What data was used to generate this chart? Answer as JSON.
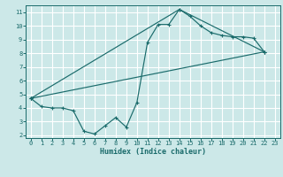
{
  "xlabel": "Humidex (Indice chaleur)",
  "bg_color": "#cce8e8",
  "line_color": "#1a6b6b",
  "grid_color": "#ffffff",
  "xlim": [
    -0.5,
    23.5
  ],
  "ylim": [
    1.8,
    11.5
  ],
  "xticks": [
    0,
    1,
    2,
    3,
    4,
    5,
    6,
    7,
    8,
    9,
    10,
    11,
    12,
    13,
    14,
    15,
    16,
    17,
    18,
    19,
    20,
    21,
    22,
    23
  ],
  "yticks": [
    2,
    3,
    4,
    5,
    6,
    7,
    8,
    9,
    10,
    11
  ],
  "series0_x": [
    0,
    1,
    2,
    3,
    4,
    5,
    6,
    7,
    8,
    9,
    10,
    11,
    12,
    13,
    14,
    15,
    16,
    17,
    18,
    19,
    20,
    21,
    22
  ],
  "series0_y": [
    4.7,
    4.1,
    4.0,
    4.0,
    3.8,
    2.3,
    2.1,
    2.7,
    3.3,
    2.6,
    4.4,
    8.8,
    10.1,
    10.1,
    11.2,
    10.7,
    10.0,
    9.5,
    9.3,
    9.2,
    9.2,
    9.1,
    8.1
  ],
  "series1_x": [
    0,
    22
  ],
  "series1_y": [
    4.7,
    8.1
  ],
  "series2_x": [
    0,
    14,
    22
  ],
  "series2_y": [
    4.7,
    11.2,
    8.1
  ]
}
